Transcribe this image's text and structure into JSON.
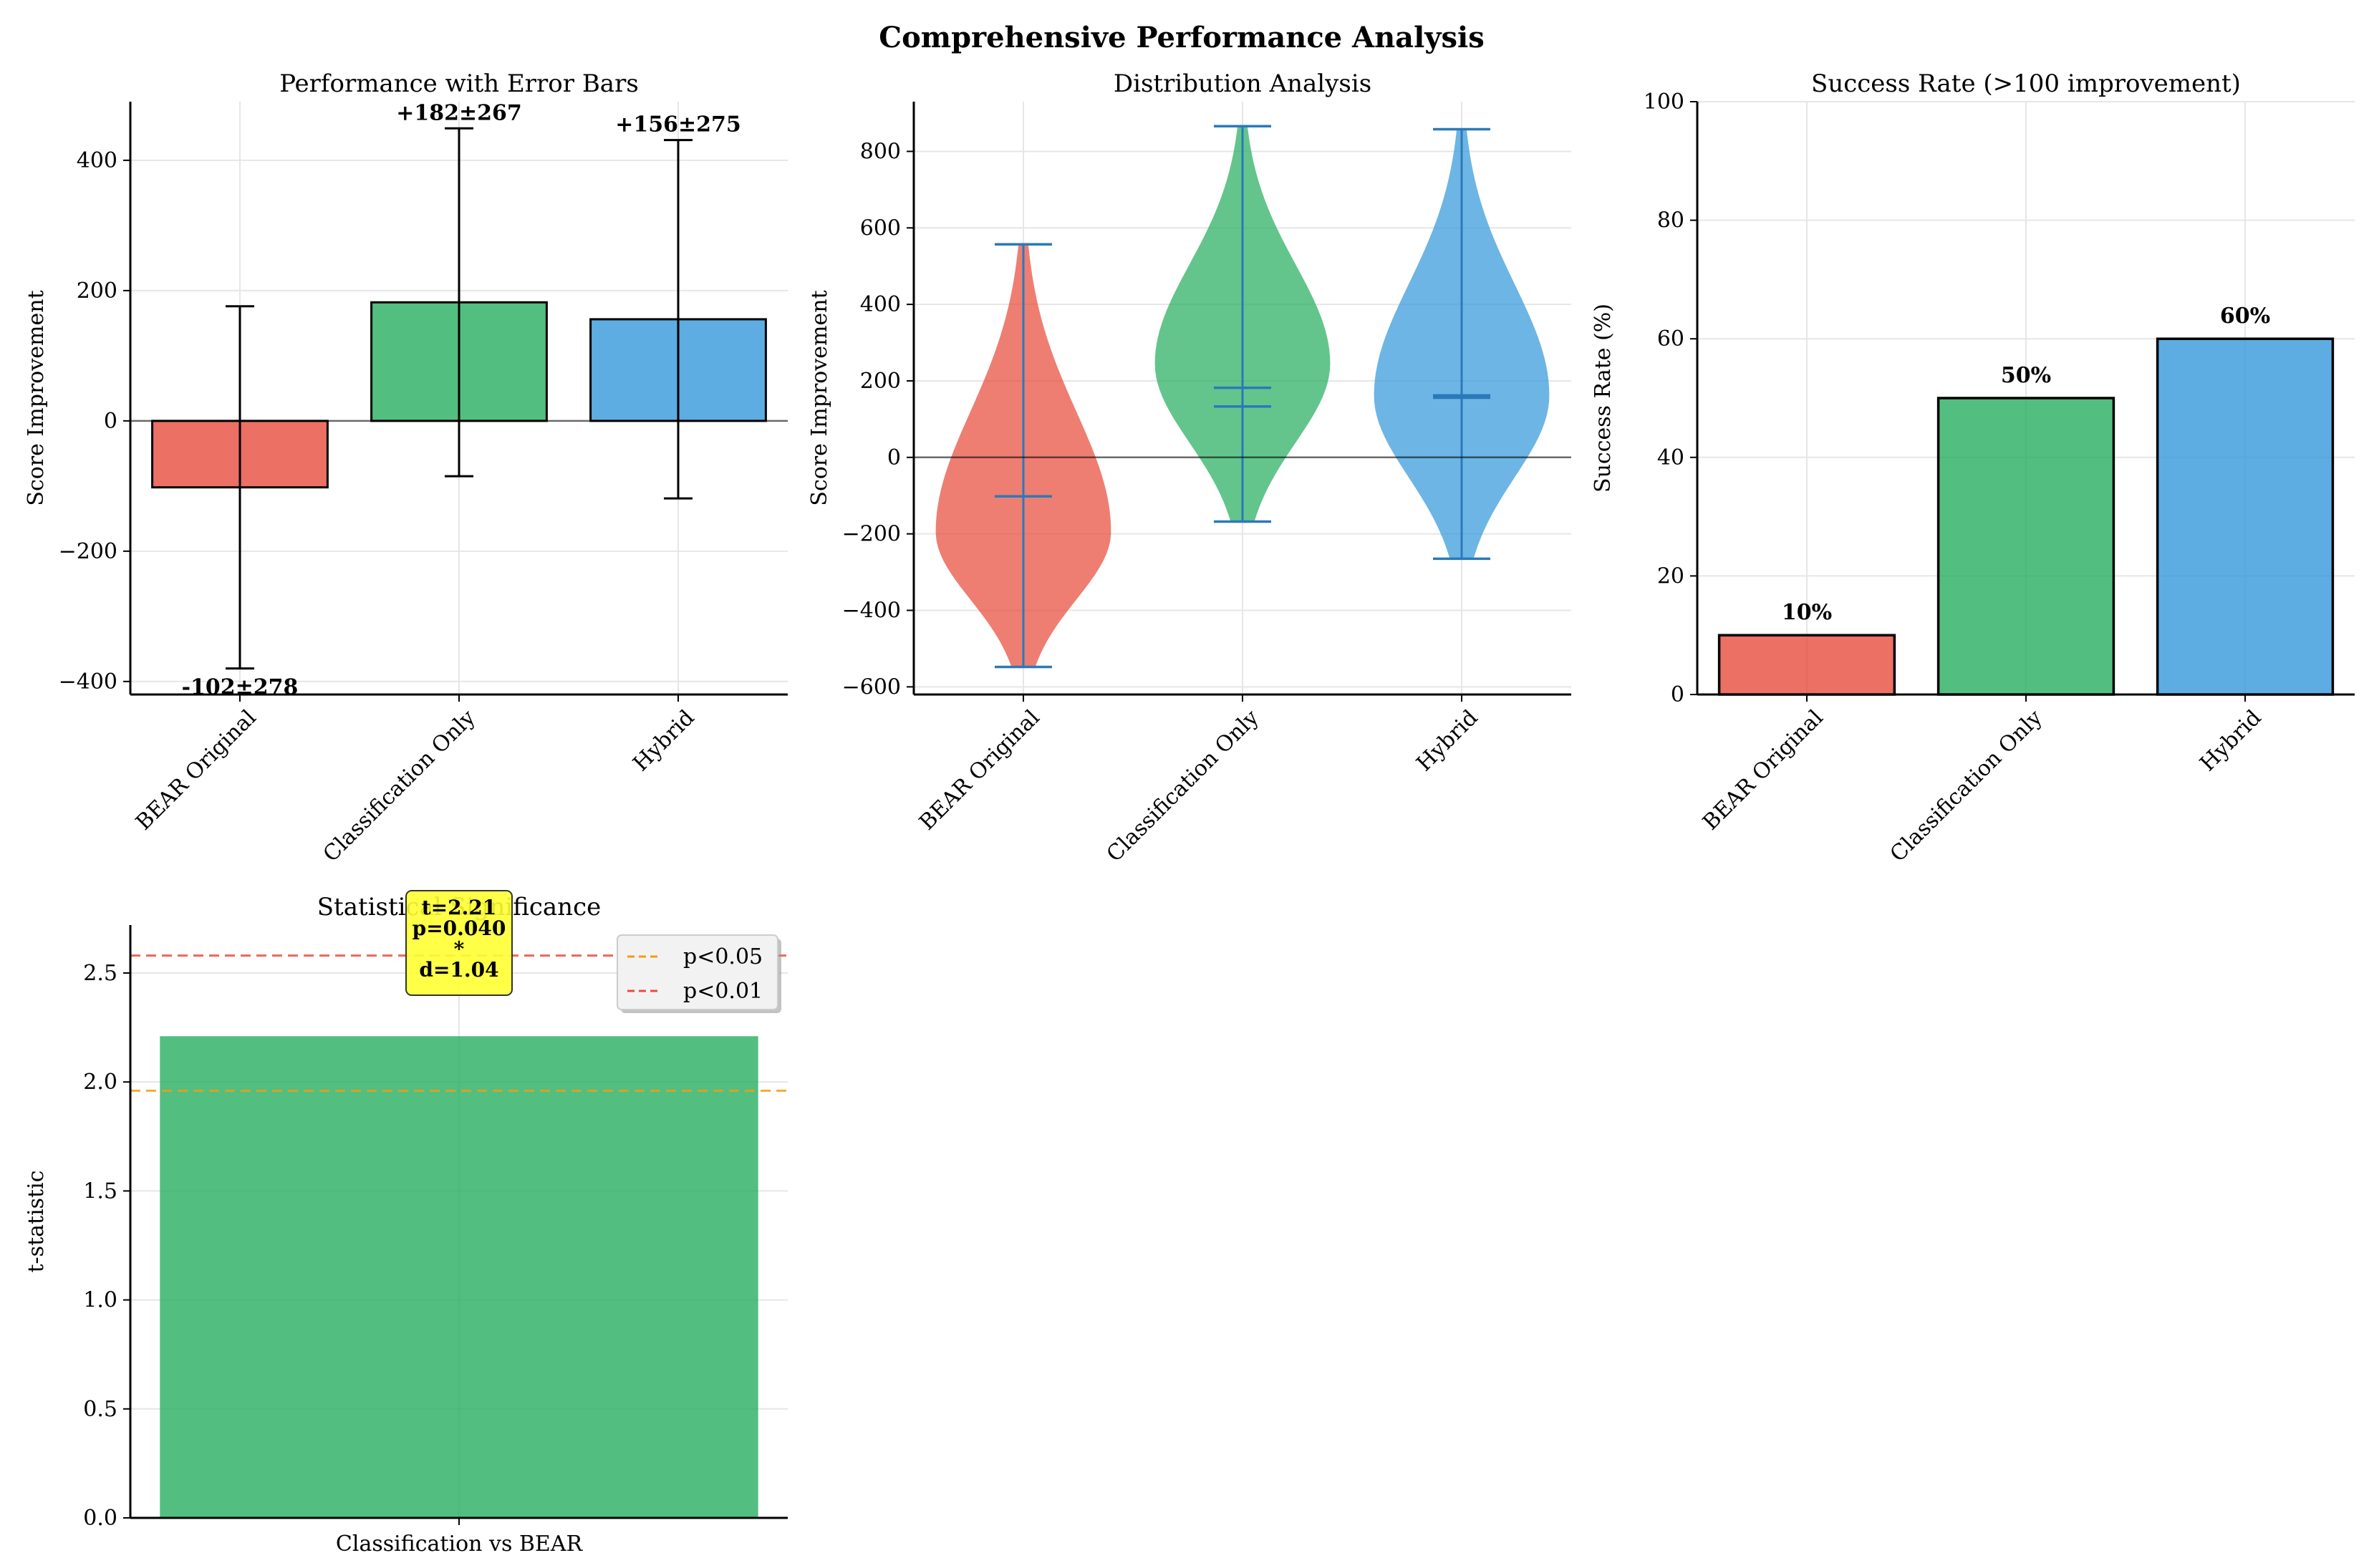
{
  "figure": {
    "title": "Comprehensive Performance Analysis"
  },
  "chart_data": [
    {
      "type": "bar",
      "title": "Performance with Error Bars",
      "xlabel": "",
      "ylabel": "Score Improvement",
      "categories": [
        "BEAR Original",
        "Classification Only",
        "Hybrid"
      ],
      "values": [
        -102,
        182,
        156
      ],
      "errors": [
        278,
        267,
        275
      ],
      "value_labels": [
        "-102±278",
        "+182±267",
        "+156±275"
      ],
      "colors": [
        "#e74c3c",
        "#27ae60",
        "#3498db"
      ],
      "ylim": [
        -420,
        490
      ],
      "yticks": [
        -400,
        -200,
        0,
        200,
        400
      ],
      "ytick_labels": [
        "−400",
        "−200",
        "0",
        "200",
        "400"
      ],
      "reference_line": 0,
      "grid": true
    },
    {
      "type": "violin",
      "title": "Distribution Analysis",
      "xlabel": "",
      "ylabel": "Score Improvement",
      "categories": [
        "BEAR Original",
        "Classification Only",
        "Hybrid"
      ],
      "min": [
        -548,
        -168,
        -265
      ],
      "max": [
        557,
        866,
        858
      ],
      "mean": [
        -102,
        182,
        156
      ],
      "median": [
        -102,
        133,
        162
      ],
      "colors": [
        "#e74c3c",
        "#27ae60",
        "#3498db"
      ],
      "ylim": [
        -620,
        930
      ],
      "yticks": [
        -600,
        -400,
        -200,
        0,
        200,
        400,
        600,
        800
      ],
      "ytick_labels": [
        "−600",
        "−400",
        "−200",
        "0",
        "200",
        "400",
        "600",
        "800"
      ],
      "reference_line": 0,
      "grid": true
    },
    {
      "type": "bar",
      "title": "Success Rate (>100 improvement)",
      "xlabel": "",
      "ylabel": "Success Rate (%)",
      "categories": [
        "BEAR Original",
        "Classification Only",
        "Hybrid"
      ],
      "values": [
        10,
        50,
        60
      ],
      "value_labels": [
        "10%",
        "50%",
        "60%"
      ],
      "colors": [
        "#e74c3c",
        "#27ae60",
        "#3498db"
      ],
      "ylim": [
        0,
        100
      ],
      "yticks": [
        0,
        20,
        40,
        60,
        80,
        100
      ],
      "ytick_labels": [
        "0",
        "20",
        "40",
        "60",
        "80",
        "100"
      ],
      "grid": true
    },
    {
      "type": "bar",
      "title": "Statistical Significance",
      "xlabel": "",
      "ylabel": "t-statistic",
      "categories": [
        "Classification vs BEAR"
      ],
      "values": [
        2.21
      ],
      "colors": [
        "#27ae60"
      ],
      "annotation": [
        "t=2.21",
        "p=0.040",
        "*",
        "d=1.04"
      ],
      "thresholds": [
        {
          "label": "p<0.05",
          "value": 1.96,
          "color": "#f39c12"
        },
        {
          "label": "p<0.01",
          "value": 2.58,
          "color": "#e74c3c"
        }
      ],
      "ylim": [
        0,
        2.72
      ],
      "yticks": [
        0,
        0.5,
        1.0,
        1.5,
        2.0,
        2.5
      ],
      "ytick_labels": [
        "0.0",
        "0.5",
        "1.0",
        "1.5",
        "2.0",
        "2.5"
      ],
      "legend": "top-right",
      "grid": true
    }
  ]
}
